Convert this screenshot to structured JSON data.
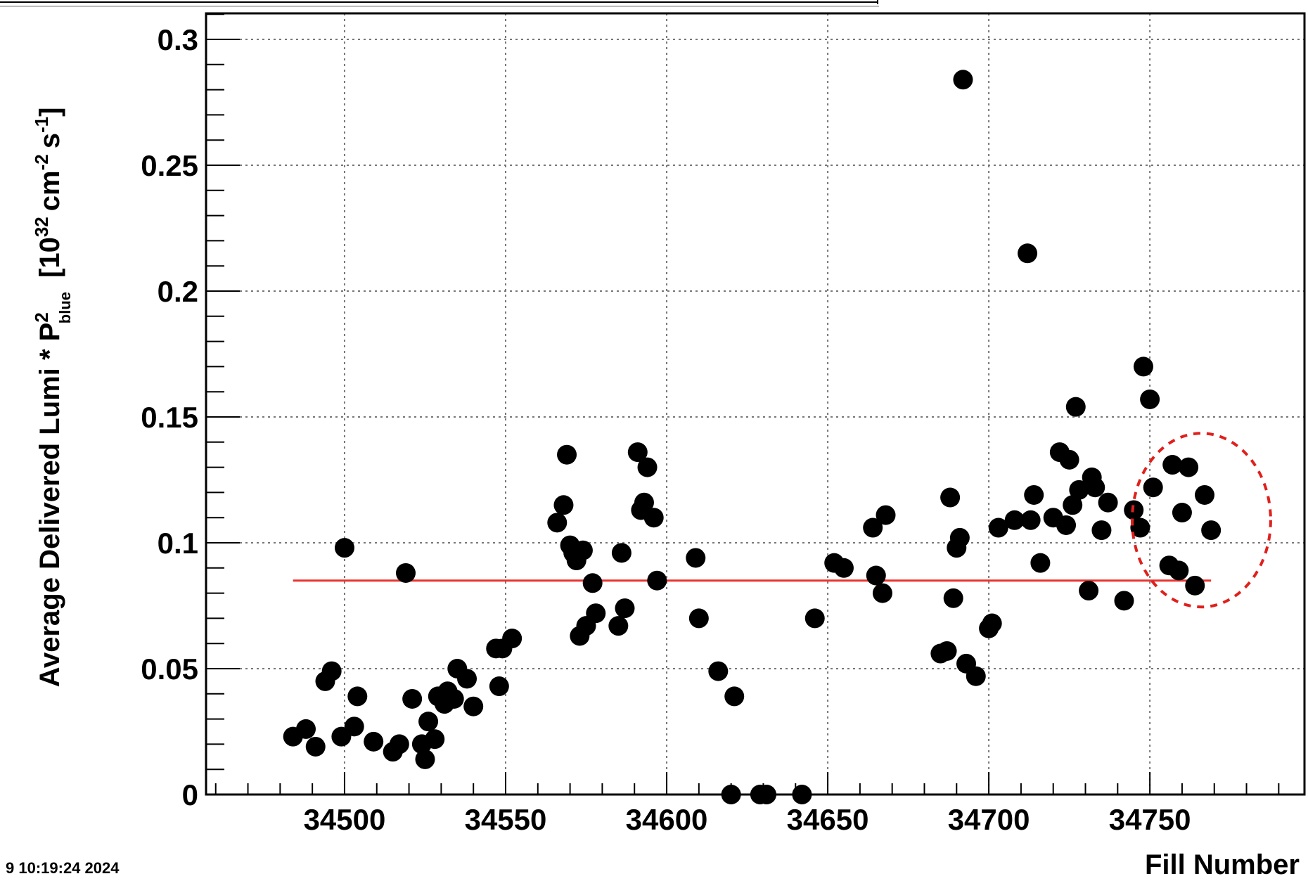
{
  "chart_data": {
    "type": "scatter",
    "title": "",
    "xlabel": "Fill Number",
    "ylabel": {
      "main": "Average Delivered Lumi * P",
      "sup": "2",
      "sub": "blue",
      "unit_open": "[10",
      "unit_exp": "32",
      "unit_cm": "cm",
      "unit_cm_exp": "-2",
      "unit_s": "s",
      "unit_s_exp": "-1",
      "unit_close": "]"
    },
    "xlim": [
      34457,
      34798
    ],
    "ylim": [
      0,
      0.3
    ],
    "x_ticks": [
      34500,
      34550,
      34600,
      34650,
      34700,
      34750
    ],
    "y_ticks": [
      0,
      0.05,
      0.1,
      0.15,
      0.2,
      0.25,
      0.3
    ],
    "x_tick_labels": [
      "34500",
      "34550",
      "34600",
      "34650",
      "34700",
      "34750"
    ],
    "y_tick_labels": [
      "0",
      "0.05",
      "0.1",
      "0.15",
      "0.2",
      "0.25",
      "0.3"
    ],
    "grid": true,
    "marker_color": "#000000",
    "fit_line": {
      "y": 0.085,
      "x_start": 34484,
      "x_end": 34769,
      "color": "#e8332f"
    },
    "highlight_ellipse": {
      "cx": 34766,
      "cy": 0.109,
      "rx": 21.5,
      "ry": 0.0345,
      "color": "#e0201c"
    },
    "points": [
      {
        "x": 34484,
        "y": 0.023
      },
      {
        "x": 34488,
        "y": 0.026
      },
      {
        "x": 34491,
        "y": 0.019
      },
      {
        "x": 34494,
        "y": 0.045
      },
      {
        "x": 34496,
        "y": 0.049
      },
      {
        "x": 34499,
        "y": 0.023
      },
      {
        "x": 34500,
        "y": 0.098
      },
      {
        "x": 34503,
        "y": 0.027
      },
      {
        "x": 34504,
        "y": 0.039
      },
      {
        "x": 34509,
        "y": 0.021
      },
      {
        "x": 34515,
        "y": 0.017
      },
      {
        "x": 34517,
        "y": 0.02
      },
      {
        "x": 34519,
        "y": 0.088
      },
      {
        "x": 34521,
        "y": 0.038
      },
      {
        "x": 34524,
        "y": 0.02
      },
      {
        "x": 34525,
        "y": 0.014
      },
      {
        "x": 34526,
        "y": 0.029
      },
      {
        "x": 34528,
        "y": 0.022
      },
      {
        "x": 34529,
        "y": 0.039
      },
      {
        "x": 34531,
        "y": 0.036
      },
      {
        "x": 34532,
        "y": 0.041
      },
      {
        "x": 34534,
        "y": 0.038
      },
      {
        "x": 34535,
        "y": 0.05
      },
      {
        "x": 34538,
        "y": 0.046
      },
      {
        "x": 34540,
        "y": 0.035
      },
      {
        "x": 34547,
        "y": 0.058
      },
      {
        "x": 34548,
        "y": 0.043
      },
      {
        "x": 34549,
        "y": 0.058
      },
      {
        "x": 34552,
        "y": 0.062
      },
      {
        "x": 34566,
        "y": 0.108
      },
      {
        "x": 34568,
        "y": 0.115
      },
      {
        "x": 34569,
        "y": 0.135
      },
      {
        "x": 34570,
        "y": 0.099
      },
      {
        "x": 34571,
        "y": 0.096
      },
      {
        "x": 34572,
        "y": 0.093
      },
      {
        "x": 34573,
        "y": 0.063
      },
      {
        "x": 34574,
        "y": 0.097
      },
      {
        "x": 34575,
        "y": 0.067
      },
      {
        "x": 34577,
        "y": 0.084
      },
      {
        "x": 34578,
        "y": 0.072
      },
      {
        "x": 34585,
        "y": 0.067
      },
      {
        "x": 34586,
        "y": 0.096
      },
      {
        "x": 34587,
        "y": 0.074
      },
      {
        "x": 34591,
        "y": 0.136
      },
      {
        "x": 34592,
        "y": 0.113
      },
      {
        "x": 34593,
        "y": 0.116
      },
      {
        "x": 34594,
        "y": 0.13
      },
      {
        "x": 34596,
        "y": 0.11
      },
      {
        "x": 34597,
        "y": 0.085
      },
      {
        "x": 34609,
        "y": 0.094
      },
      {
        "x": 34610,
        "y": 0.07
      },
      {
        "x": 34616,
        "y": 0.049
      },
      {
        "x": 34620,
        "y": 0.0
      },
      {
        "x": 34621,
        "y": 0.039
      },
      {
        "x": 34629,
        "y": 0.0
      },
      {
        "x": 34631,
        "y": 0.0
      },
      {
        "x": 34642,
        "y": 0.0
      },
      {
        "x": 34646,
        "y": 0.07
      },
      {
        "x": 34652,
        "y": 0.092
      },
      {
        "x": 34655,
        "y": 0.09
      },
      {
        "x": 34664,
        "y": 0.106
      },
      {
        "x": 34665,
        "y": 0.087
      },
      {
        "x": 34667,
        "y": 0.08
      },
      {
        "x": 34668,
        "y": 0.111
      },
      {
        "x": 34685,
        "y": 0.056
      },
      {
        "x": 34687,
        "y": 0.057
      },
      {
        "x": 34688,
        "y": 0.118
      },
      {
        "x": 34689,
        "y": 0.078
      },
      {
        "x": 34690,
        "y": 0.098
      },
      {
        "x": 34691,
        "y": 0.102
      },
      {
        "x": 34692,
        "y": 0.284
      },
      {
        "x": 34693,
        "y": 0.052
      },
      {
        "x": 34696,
        "y": 0.047
      },
      {
        "x": 34700,
        "y": 0.066
      },
      {
        "x": 34701,
        "y": 0.068
      },
      {
        "x": 34703,
        "y": 0.106
      },
      {
        "x": 34708,
        "y": 0.109
      },
      {
        "x": 34712,
        "y": 0.215
      },
      {
        "x": 34713,
        "y": 0.109
      },
      {
        "x": 34714,
        "y": 0.119
      },
      {
        "x": 34716,
        "y": 0.092
      },
      {
        "x": 34720,
        "y": 0.11
      },
      {
        "x": 34722,
        "y": 0.136
      },
      {
        "x": 34724,
        "y": 0.107
      },
      {
        "x": 34725,
        "y": 0.133
      },
      {
        "x": 34726,
        "y": 0.115
      },
      {
        "x": 34727,
        "y": 0.154
      },
      {
        "x": 34728,
        "y": 0.121
      },
      {
        "x": 34731,
        "y": 0.081
      },
      {
        "x": 34732,
        "y": 0.126
      },
      {
        "x": 34733,
        "y": 0.122
      },
      {
        "x": 34735,
        "y": 0.105
      },
      {
        "x": 34737,
        "y": 0.116
      },
      {
        "x": 34742,
        "y": 0.077
      },
      {
        "x": 34745,
        "y": 0.113
      },
      {
        "x": 34747,
        "y": 0.106
      },
      {
        "x": 34748,
        "y": 0.17
      },
      {
        "x": 34750,
        "y": 0.157
      },
      {
        "x": 34751,
        "y": 0.122
      },
      {
        "x": 34756,
        "y": 0.091
      },
      {
        "x": 34757,
        "y": 0.131
      },
      {
        "x": 34759,
        "y": 0.089
      },
      {
        "x": 34760,
        "y": 0.112
      },
      {
        "x": 34762,
        "y": 0.13
      },
      {
        "x": 34764,
        "y": 0.083
      },
      {
        "x": 34767,
        "y": 0.119
      },
      {
        "x": 34769,
        "y": 0.105
      }
    ]
  },
  "footer": {
    "timestamp": "9 10:19:24 2024"
  }
}
